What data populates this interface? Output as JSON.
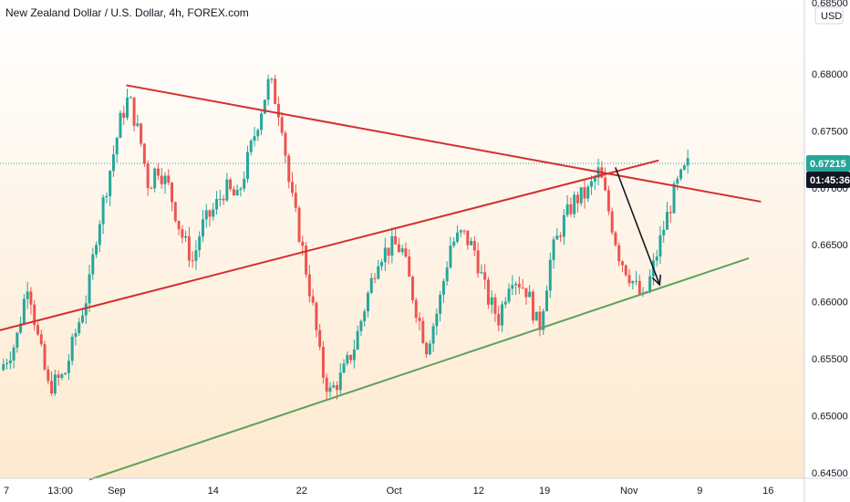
{
  "header": {
    "title": "New Zealand Dollar / U.S. Dollar, 4h, FOREX.com"
  },
  "price_axis": {
    "currency_label": "USD",
    "top_partial_label": "0.68500",
    "last_price_label": "0.67215",
    "countdown_label": "01:45:36",
    "last_price_color": "#26a69a",
    "countdown_color": "#131722"
  },
  "colors": {
    "background_top": "#ffffff",
    "background_bottom": "#fde9cf",
    "bull": "#26a69a",
    "bear": "#ef5350",
    "resistance_line": "#d32f2f",
    "support_line": "#5fa15a",
    "arrow": "#131722"
  },
  "chart_data": {
    "type": "candlestick",
    "title": "New Zealand Dollar / U.S. Dollar, 4h, FOREX.com",
    "ylim": [
      0.6445,
      0.6865
    ],
    "y_ticks": [
      0.645,
      0.65,
      0.655,
      0.66,
      0.665,
      0.67,
      0.675,
      0.68
    ],
    "x_tick_labels": [
      "7",
      "13:00",
      "Sep",
      "14",
      "22",
      "Oct",
      "12",
      "19",
      "Nov",
      "9",
      "16"
    ],
    "last_price": 0.67215,
    "close_path": [
      [
        0,
        0.654
      ],
      [
        0.02,
        0.6565
      ],
      [
        0.035,
        0.662
      ],
      [
        0.045,
        0.6575
      ],
      [
        0.06,
        0.6525
      ],
      [
        0.08,
        0.6535
      ],
      [
        0.095,
        0.6575
      ],
      [
        0.11,
        0.661
      ],
      [
        0.12,
        0.666
      ],
      [
        0.135,
        0.671
      ],
      [
        0.15,
        0.676
      ],
      [
        0.16,
        0.678
      ],
      [
        0.175,
        0.674
      ],
      [
        0.185,
        0.67
      ],
      [
        0.195,
        0.672
      ],
      [
        0.21,
        0.67
      ],
      [
        0.225,
        0.666
      ],
      [
        0.24,
        0.6635
      ],
      [
        0.25,
        0.6665
      ],
      [
        0.265,
        0.668
      ],
      [
        0.28,
        0.67
      ],
      [
        0.295,
        0.669
      ],
      [
        0.31,
        0.673
      ],
      [
        0.325,
        0.677
      ],
      [
        0.335,
        0.6795
      ],
      [
        0.35,
        0.676
      ],
      [
        0.36,
        0.67
      ],
      [
        0.375,
        0.665
      ],
      [
        0.39,
        0.659
      ],
      [
        0.4,
        0.654
      ],
      [
        0.41,
        0.652
      ],
      [
        0.425,
        0.6535
      ],
      [
        0.44,
        0.656
      ],
      [
        0.455,
        0.66
      ],
      [
        0.47,
        0.664
      ],
      [
        0.49,
        0.665
      ],
      [
        0.5,
        0.6645
      ],
      [
        0.515,
        0.66
      ],
      [
        0.53,
        0.656
      ],
      [
        0.545,
        0.6595
      ],
      [
        0.56,
        0.665
      ],
      [
        0.575,
        0.666
      ],
      [
        0.59,
        0.6645
      ],
      [
        0.605,
        0.6605
      ],
      [
        0.62,
        0.6585
      ],
      [
        0.635,
        0.6625
      ],
      [
        0.655,
        0.661
      ],
      [
        0.67,
        0.6575
      ],
      [
        0.685,
        0.664
      ],
      [
        0.7,
        0.667
      ],
      [
        0.715,
        0.669
      ],
      [
        0.73,
        0.6695
      ],
      [
        0.745,
        0.6715
      ],
      [
        0.755,
        0.6685
      ],
      [
        0.77,
        0.664
      ],
      [
        0.785,
        0.662
      ],
      [
        0.8,
        0.66
      ],
      [
        0.81,
        0.6625
      ],
      [
        0.825,
        0.6665
      ],
      [
        0.84,
        0.67
      ],
      [
        0.855,
        0.672
      ]
    ],
    "trendlines": [
      {
        "name": "resistance",
        "color": "#d32f2f",
        "points": [
          [
            0.158,
            0.679
          ],
          [
            0.945,
            0.6688
          ]
        ]
      },
      {
        "name": "rising",
        "color": "#d32f2f",
        "points": [
          [
            0.0,
            0.6575
          ],
          [
            0.818,
            0.6724
          ]
        ]
      },
      {
        "name": "support",
        "color": "#5fa15a",
        "points": [
          [
            0.112,
            0.6444
          ],
          [
            0.93,
            0.6638
          ]
        ]
      }
    ],
    "arrow": {
      "from": [
        0.765,
        0.6718
      ],
      "to": [
        0.82,
        0.6615
      ]
    }
  }
}
